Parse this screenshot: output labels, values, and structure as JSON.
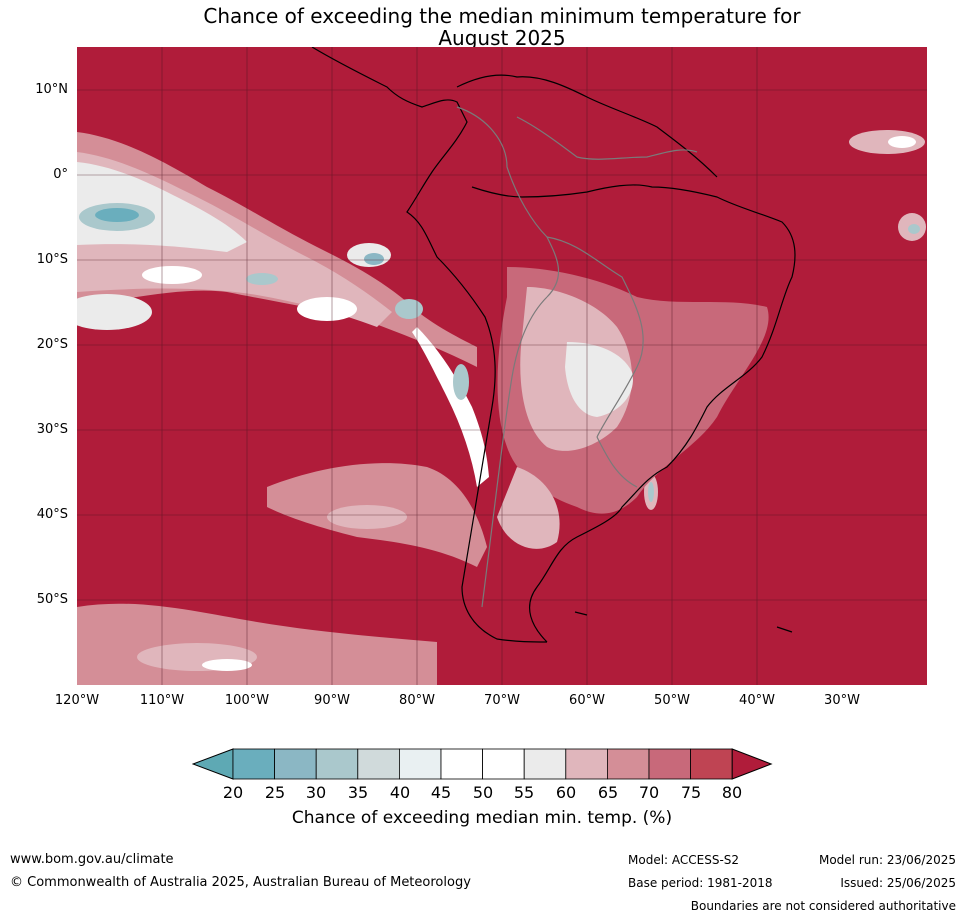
{
  "title": {
    "line1": "Chance of exceeding the median minimum temperature for",
    "line2": "August 2025"
  },
  "axes": {
    "latitude_labels": [
      "10°N",
      "0°",
      "10°S",
      "20°S",
      "30°S",
      "40°S",
      "50°S"
    ],
    "longitude_labels": [
      "120°W",
      "110°W",
      "100°W",
      "90°W",
      "80°W",
      "70°W",
      "60°W",
      "50°W",
      "40°W",
      "30°W"
    ]
  },
  "colorbar": {
    "ticks": [
      "20",
      "25",
      "30",
      "35",
      "40",
      "45",
      "50",
      "55",
      "60",
      "65",
      "70",
      "75",
      "80"
    ],
    "colors": [
      "#5ea9b4",
      "#6aaebd",
      "#8bb7c4",
      "#aac8cc",
      "#d0dadb",
      "#e9f0f2",
      "#ffffff",
      "#ffffff",
      "#ebebeb",
      "#e0b6bc",
      "#d48e97",
      "#c8697a",
      "#bf4453",
      "#b01c3a"
    ],
    "label": "Chance of exceeding median min. temp. (%)"
  },
  "footer": {
    "website": "www.bom.gov.au/climate",
    "copyright": "© Commonwealth of Australia 2025, Australian Bureau of Meteorology",
    "model": "Model: ACCESS-S2",
    "base_period": "Base period: 1981-2018",
    "model_run": "Model run: 23/06/2025",
    "issued": "Issued: 25/06/2025",
    "disclaimer": "Boundaries are not considered authoritative"
  }
}
